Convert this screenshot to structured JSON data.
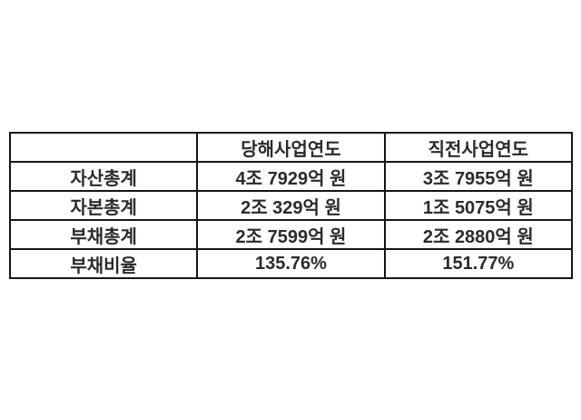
{
  "chart_data": {
    "type": "table",
    "title": "",
    "columns": [
      "",
      "당해사업연도",
      "직전사업연도"
    ],
    "rows": [
      [
        "자산총계",
        "4조 7929억 원",
        "3조 7955억 원"
      ],
      [
        "자본총계",
        "2조 329억 원",
        "1조 5075억 원"
      ],
      [
        "부채총계",
        "2조 7599억 원",
        "2조 2880억 원"
      ],
      [
        "부채비율",
        "135.76%",
        "151.77%"
      ]
    ],
    "layout": {
      "grid": "all-borders",
      "border_color": "#161616",
      "text_color": "#2b2b2b",
      "background": "#ffffff",
      "column_count": 3,
      "row_count": 5
    }
  }
}
